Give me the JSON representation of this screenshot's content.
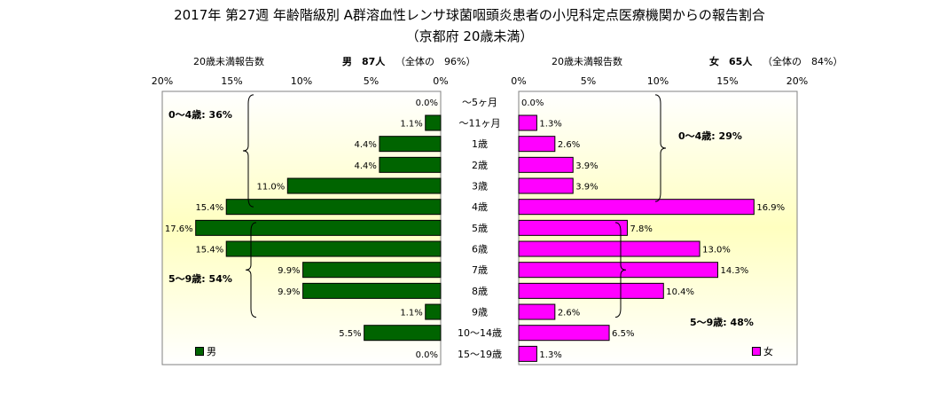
{
  "title": "2017年 第27週 年齢階級別 A群溶血性レンサ球菌咽頭炎患者の小児科定点医療機関からの報告割合",
  "subtitle": "（京都府 20歳未満）",
  "chart_data": {
    "type": "bar",
    "orientation": "horizontal-butterfly",
    "categories": [
      "～5ヶ月",
      "～11ヶ月",
      "1歳",
      "2歳",
      "3歳",
      "4歳",
      "5歳",
      "6歳",
      "7歳",
      "8歳",
      "9歳",
      "10～14歳",
      "15～19歳"
    ],
    "xlim": [
      0,
      20
    ],
    "ticks": [
      "0%",
      "5%",
      "10%",
      "15%",
      "20%"
    ],
    "grid": false,
    "series": [
      {
        "name": "男",
        "side": "left",
        "color": "#006400",
        "header_label": "20歳未満報告数",
        "header_count": "男　87人",
        "header_note": "（全体の　96%）",
        "values": [
          0.0,
          1.1,
          4.4,
          4.4,
          11.0,
          15.4,
          17.6,
          15.4,
          9.9,
          9.9,
          1.1,
          5.5,
          0.0
        ],
        "labels": [
          "0.0%",
          "1.1%",
          "4.4%",
          "4.4%",
          "11.0%",
          "15.4%",
          "17.6%",
          "15.4%",
          "9.9%",
          "9.9%",
          "1.1%",
          "5.5%",
          "0.0%"
        ],
        "group_labels": [
          "0～4歳: 36%",
          "5～9歳: 54%"
        ]
      },
      {
        "name": "女",
        "side": "right",
        "color": "#ff00ff",
        "header_label": "20歳未満報告数",
        "header_count": "女　65人",
        "header_note": "（全体の　84%）",
        "values": [
          0.0,
          1.3,
          2.6,
          3.9,
          3.9,
          16.9,
          7.8,
          13.0,
          14.3,
          10.4,
          2.6,
          6.5,
          1.3
        ],
        "labels": [
          "0.0%",
          "1.3%",
          "2.6%",
          "3.9%",
          "3.9%",
          "16.9%",
          "7.8%",
          "13.0%",
          "14.3%",
          "10.4%",
          "2.6%",
          "6.5%",
          "1.3%"
        ],
        "group_labels": [
          "0～4歳: 29%",
          "5～9歳: 48%"
        ]
      }
    ]
  },
  "colors": {
    "male": "#006400",
    "female": "#ff00ff",
    "plot_bg_center": "#ffffc0"
  }
}
